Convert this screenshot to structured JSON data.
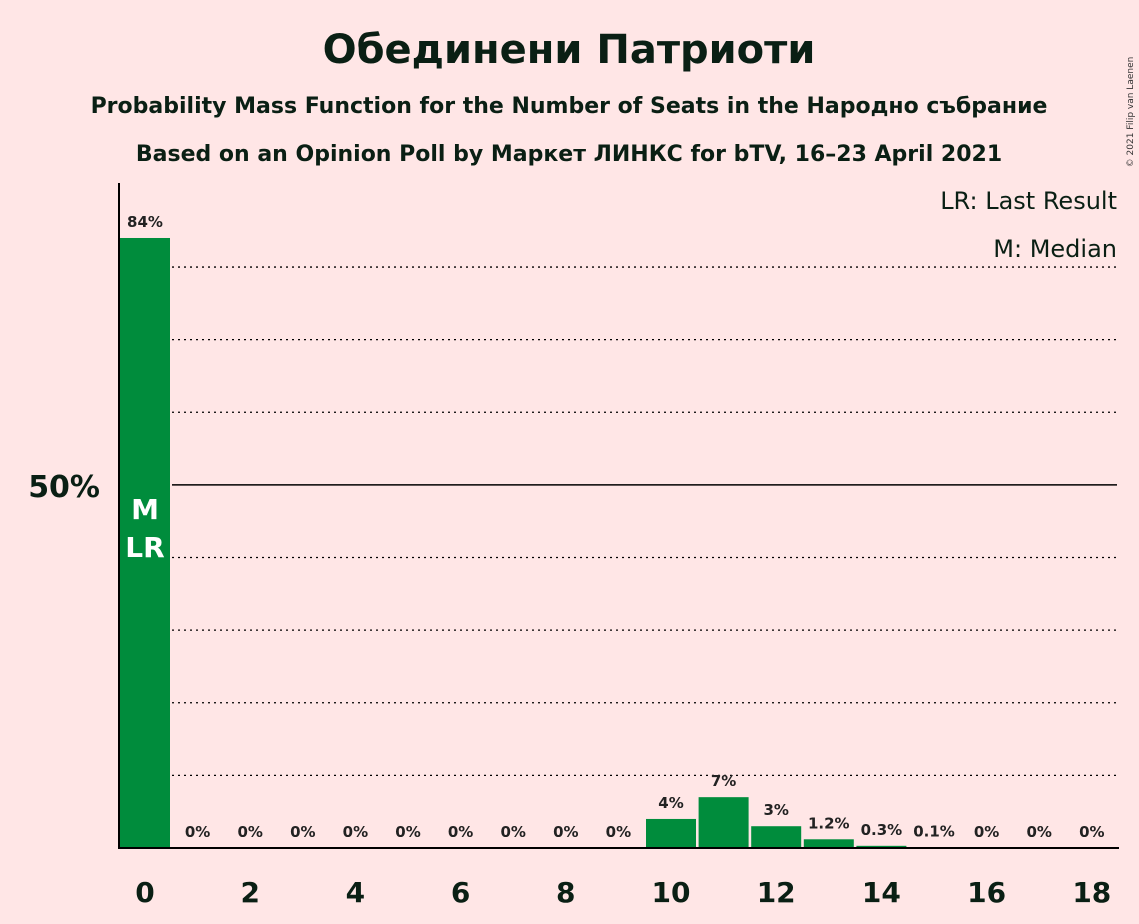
{
  "chart_data": {
    "type": "bar",
    "title": "Обединени Патриоти",
    "subtitle": "Probability Mass Function for the Number of Seats in the Народно събрание",
    "subtitle2": "Based on an Opinion Poll by Маркет ЛИНКС for bTV, 16–23 April 2021",
    "legend": {
      "lr": "LR: Last Result",
      "median": "M: Median",
      "placement": "top-right"
    },
    "copyright": "© 2021 Filip van Laenen",
    "x": [
      0,
      1,
      2,
      3,
      4,
      5,
      6,
      7,
      8,
      9,
      10,
      11,
      12,
      13,
      14,
      15,
      16,
      17,
      18
    ],
    "values": [
      84,
      0,
      0,
      0,
      0,
      0,
      0,
      0,
      0,
      0,
      4,
      7,
      3,
      1.2,
      0.3,
      0.1,
      0,
      0,
      0
    ],
    "labels": [
      "84%",
      "0%",
      "0%",
      "0%",
      "0%",
      "0%",
      "0%",
      "0%",
      "0%",
      "0%",
      "4%",
      "7%",
      "3%",
      "1.2%",
      "0.3%",
      "0.1%",
      "0%",
      "0%",
      "0%"
    ],
    "xticks": [
      "0",
      "2",
      "4",
      "6",
      "8",
      "10",
      "12",
      "14",
      "16",
      "18"
    ],
    "ytick_label": "50%",
    "ylim": [
      0,
      88
    ],
    "gridlines": [
      10,
      20,
      30,
      40,
      60,
      70,
      80
    ],
    "major_gridline": 50,
    "median_seat": 0,
    "last_result_seat": 0,
    "markers": {
      "median": "M",
      "last_result": "LR"
    },
    "bar_color": "#008c3c"
  }
}
